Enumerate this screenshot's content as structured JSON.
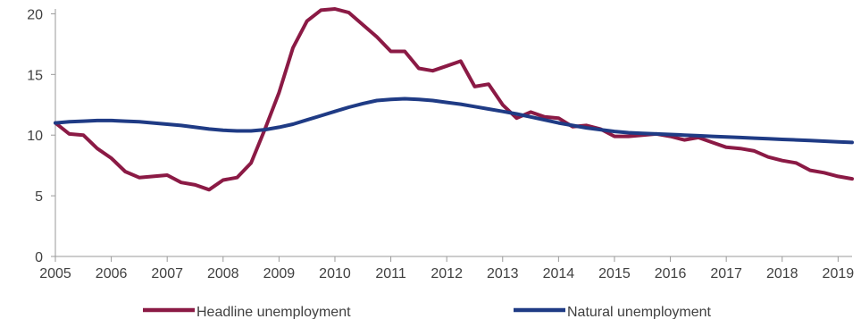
{
  "chart_data": {
    "type": "line",
    "title": "",
    "xlabel": "",
    "ylabel": "",
    "x_ticks": [
      "2005",
      "2006",
      "2007",
      "2008",
      "2009",
      "2010",
      "2011",
      "2012",
      "2013",
      "2014",
      "2015",
      "2016",
      "2017",
      "2018",
      "2019"
    ],
    "y_ticks": [
      "0",
      "5",
      "10",
      "15",
      "20"
    ],
    "xlim": [
      2005,
      2019.25
    ],
    "ylim": [
      0,
      20.4
    ],
    "grid": false,
    "legend_position": "bottom",
    "series": [
      {
        "name": "Headline unemployment",
        "color": "#8B1A45",
        "x": [
          2005.0,
          2005.25,
          2005.5,
          2005.75,
          2006.0,
          2006.25,
          2006.5,
          2006.75,
          2007.0,
          2007.25,
          2007.5,
          2007.75,
          2008.0,
          2008.25,
          2008.5,
          2008.75,
          2009.0,
          2009.25,
          2009.5,
          2009.75,
          2010.0,
          2010.25,
          2010.5,
          2010.75,
          2011.0,
          2011.25,
          2011.5,
          2011.75,
          2012.0,
          2012.25,
          2012.5,
          2012.75,
          2013.0,
          2013.25,
          2013.5,
          2013.75,
          2014.0,
          2014.25,
          2014.5,
          2014.75,
          2015.0,
          2015.25,
          2015.5,
          2015.75,
          2016.0,
          2016.25,
          2016.5,
          2016.75,
          2017.0,
          2017.25,
          2017.5,
          2017.75,
          2018.0,
          2018.25,
          2018.5,
          2018.75,
          2019.0,
          2019.25
        ],
        "values": [
          11.0,
          10.1,
          10.0,
          8.9,
          8.1,
          7.0,
          6.5,
          6.6,
          6.7,
          6.1,
          5.9,
          5.5,
          6.3,
          6.5,
          7.7,
          10.5,
          13.5,
          17.2,
          19.4,
          20.3,
          20.4,
          20.1,
          19.1,
          18.1,
          16.9,
          16.9,
          15.5,
          15.3,
          15.7,
          16.1,
          14.0,
          14.2,
          12.5,
          11.4,
          11.9,
          11.5,
          11.4,
          10.7,
          10.8,
          10.5,
          9.9,
          9.9,
          10.0,
          10.1,
          9.9,
          9.6,
          9.8,
          9.4,
          9.0,
          8.9,
          8.7,
          8.2,
          7.9,
          7.7,
          7.1,
          6.9,
          6.6,
          6.4
        ]
      },
      {
        "name": "Natural unemployment",
        "color": "#1F3B85",
        "x": [
          2005.0,
          2005.25,
          2005.5,
          2005.75,
          2006.0,
          2006.25,
          2006.5,
          2006.75,
          2007.0,
          2007.25,
          2007.5,
          2007.75,
          2008.0,
          2008.25,
          2008.5,
          2008.75,
          2009.0,
          2009.25,
          2009.5,
          2009.75,
          2010.0,
          2010.25,
          2010.5,
          2010.75,
          2011.0,
          2011.25,
          2011.5,
          2011.75,
          2012.0,
          2012.25,
          2012.5,
          2012.75,
          2013.0,
          2013.25,
          2013.5,
          2013.75,
          2014.0,
          2014.25,
          2014.5,
          2014.75,
          2015.0,
          2015.25,
          2015.5,
          2015.75,
          2016.0,
          2016.25,
          2016.5,
          2016.75,
          2017.0,
          2017.25,
          2017.5,
          2017.75,
          2018.0,
          2018.25,
          2018.5,
          2018.75,
          2019.0,
          2019.25
        ],
        "values": [
          11.0,
          11.1,
          11.15,
          11.2,
          11.2,
          11.15,
          11.1,
          11.0,
          10.9,
          10.8,
          10.65,
          10.5,
          10.4,
          10.35,
          10.35,
          10.45,
          10.65,
          10.9,
          11.25,
          11.6,
          11.95,
          12.3,
          12.6,
          12.85,
          12.95,
          13.0,
          12.95,
          12.85,
          12.7,
          12.55,
          12.35,
          12.15,
          11.95,
          11.75,
          11.5,
          11.25,
          11.0,
          10.8,
          10.6,
          10.45,
          10.3,
          10.2,
          10.15,
          10.1,
          10.05,
          10.0,
          9.95,
          9.9,
          9.85,
          9.8,
          9.75,
          9.7,
          9.65,
          9.6,
          9.55,
          9.5,
          9.45,
          9.4
        ]
      }
    ]
  }
}
